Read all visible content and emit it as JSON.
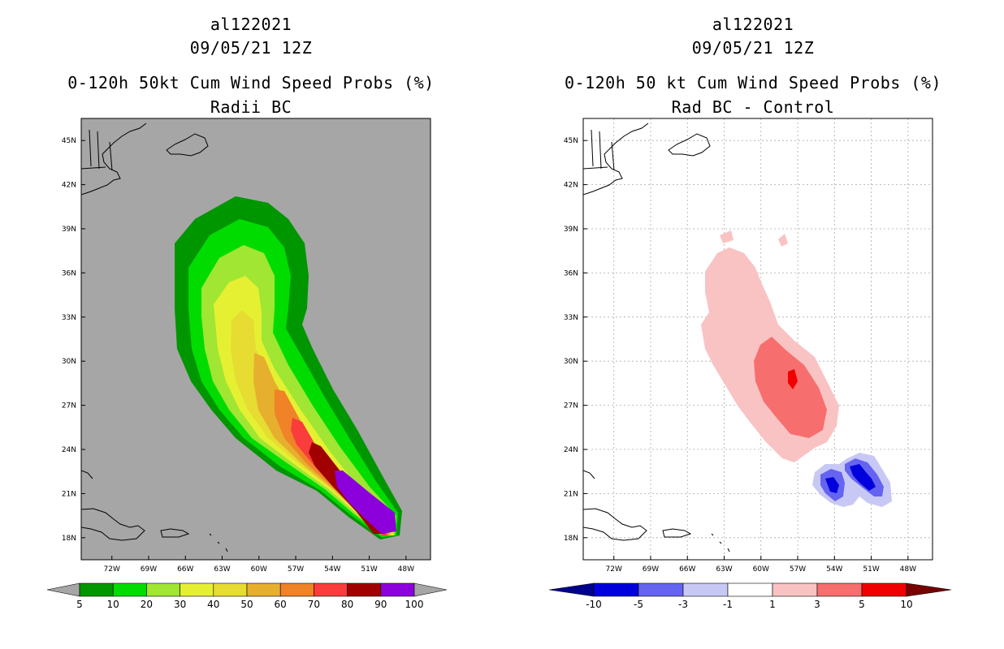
{
  "chart_data": [
    {
      "type": "heatmap",
      "storm_id": "al122021",
      "datetime": "09/05/21 12Z",
      "title": "0-120h 50kt Cum Wind Speed Probs (%)",
      "subtitle": "Radii BC",
      "lat_ticks": [
        "45N",
        "42N",
        "39N",
        "36N",
        "33N",
        "30N",
        "27N",
        "24N",
        "21N",
        "18N"
      ],
      "lon_ticks": [
        "72W",
        "69W",
        "66W",
        "63W",
        "60W",
        "57W",
        "54W",
        "51W",
        "48W"
      ],
      "lat_range": [
        16.5,
        46.5
      ],
      "lon_range": [
        -74.5,
        -46
      ],
      "colorbar": {
        "labels": [
          "5",
          "10",
          "20",
          "30",
          "40",
          "50",
          "60",
          "70",
          "80",
          "90",
          "100"
        ],
        "colors": [
          "#009600",
          "#00dc00",
          "#a0e632",
          "#e6f032",
          "#e6dc32",
          "#e6af2d",
          "#f08228",
          "#fa3c3c",
          "#a00000",
          "#8c00dc"
        ],
        "under_color": "#a6a6a6",
        "over_color": "#a6a6a6"
      },
      "contour_levels": [
        5,
        10,
        20,
        30,
        40,
        50,
        60,
        70,
        80,
        90
      ],
      "background": "#a6a6a6"
    },
    {
      "type": "heatmap",
      "storm_id": "al122021",
      "datetime": "09/05/21 12Z",
      "title": "0-120h 50 kt Cum Wind Speed Probs (%)",
      "subtitle": "Rad BC - Control",
      "lat_ticks": [
        "45N",
        "42N",
        "39N",
        "36N",
        "33N",
        "30N",
        "27N",
        "24N",
        "21N",
        "18N"
      ],
      "lon_ticks": [
        "72W",
        "69W",
        "66W",
        "63W",
        "60W",
        "57W",
        "54W",
        "51W",
        "48W"
      ],
      "lat_range": [
        16.5,
        46.5
      ],
      "lon_range": [
        -74.5,
        -46
      ],
      "colorbar": {
        "labels": [
          "-10",
          "-5",
          "-3",
          "-1",
          "1",
          "3",
          "5",
          "10"
        ],
        "colors": [
          "#0000dc",
          "#6464f0",
          "#c8c8f5",
          "#ffffff",
          "#f9c3c3",
          "#f76e6e",
          "#f00000"
        ],
        "under_color": "#00008c",
        "over_color": "#780000"
      },
      "positive_levels": [
        1,
        3,
        5
      ],
      "negative_levels": [
        -1,
        -3,
        -5
      ],
      "background": "#ffffff"
    }
  ]
}
